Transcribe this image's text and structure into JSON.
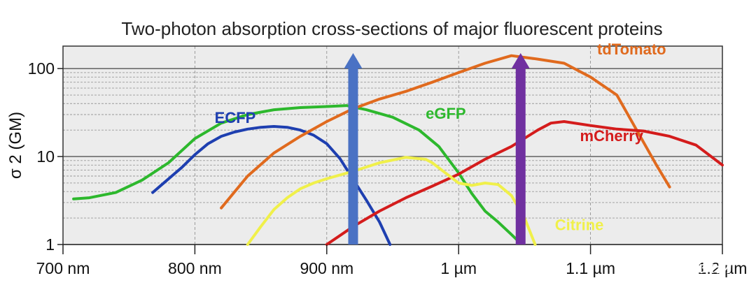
{
  "chart_data": {
    "type": "line",
    "title": "Two-photon absorption cross-sections of major fluorescent proteins",
    "xlabel": "",
    "ylabel": "σ 2 (GM)",
    "xlim": [
      700,
      1200
    ],
    "ylim": [
      1,
      180
    ],
    "yscale": "log",
    "grid": true,
    "x_ticks": [
      {
        "value": 700,
        "label": "700 nm"
      },
      {
        "value": 800,
        "label": "800 nm"
      },
      {
        "value": 900,
        "label": "900 nm"
      },
      {
        "value": 1000,
        "label": "1 µm"
      },
      {
        "value": 1100,
        "label": "1.1 µm"
      },
      {
        "value": 1200,
        "label": "1.2 µm"
      }
    ],
    "y_ticks": [
      {
        "value": 1,
        "label": "1"
      },
      {
        "value": 10,
        "label": "10"
      },
      {
        "value": 100,
        "label": "100"
      }
    ],
    "series": [
      {
        "name": "ECFP",
        "color": "#1e3fb0",
        "x": [
          768,
          775,
          790,
          800,
          810,
          820,
          830,
          840,
          850,
          860,
          870,
          880,
          890,
          900,
          910,
          920,
          930,
          940,
          948
        ],
        "y": [
          3.9,
          4.8,
          7.5,
          10.5,
          14,
          17,
          19,
          20.5,
          21.5,
          22,
          21.5,
          20,
          17.5,
          14,
          9.5,
          5.5,
          3.2,
          1.8,
          1.0
        ]
      },
      {
        "name": "eGFP",
        "color": "#2db82d",
        "x": [
          708,
          720,
          740,
          760,
          780,
          800,
          820,
          840,
          860,
          880,
          900,
          915,
          930,
          950,
          970,
          985,
          1000,
          1010,
          1020,
          1030,
          1040,
          1045
        ],
        "y": [
          3.3,
          3.4,
          3.9,
          5.4,
          8.5,
          16,
          24,
          30,
          34,
          36,
          37,
          38,
          34,
          28,
          20,
          13,
          6.5,
          3.8,
          2.4,
          1.8,
          1.3,
          1.1
        ]
      },
      {
        "name": "tdTomato",
        "color": "#e06a1e",
        "x": [
          820,
          840,
          860,
          880,
          900,
          920,
          940,
          960,
          980,
          1000,
          1020,
          1040,
          1060,
          1080,
          1100,
          1120,
          1135,
          1150,
          1160
        ],
        "y": [
          2.6,
          6,
          11,
          17,
          25,
          35,
          45,
          55,
          70,
          90,
          115,
          140,
          128,
          115,
          80,
          50,
          20,
          8,
          4.5
        ]
      },
      {
        "name": "mCherry",
        "color": "#d41c1c",
        "x": [
          900,
          920,
          940,
          960,
          980,
          1000,
          1020,
          1040,
          1060,
          1070,
          1080,
          1100,
          1120,
          1140,
          1160,
          1180,
          1200
        ],
        "y": [
          1.0,
          1.6,
          2.4,
          3.4,
          4.6,
          6.3,
          9.3,
          13,
          20,
          24,
          25,
          22.5,
          20.5,
          19.5,
          17,
          13.5,
          8
        ]
      },
      {
        "name": "Citrine",
        "color": "#f0f04a",
        "x": [
          840,
          850,
          860,
          870,
          880,
          890,
          900,
          920,
          940,
          960,
          975,
          980,
          990,
          1000,
          1010,
          1020,
          1030,
          1040,
          1050,
          1058
        ],
        "y": [
          1.0,
          1.6,
          2.5,
          3.4,
          4.3,
          5,
          5.6,
          6.8,
          8.5,
          9.8,
          9.3,
          8.5,
          6.5,
          5.0,
          4.7,
          5.0,
          4.8,
          3.6,
          2.0,
          1.0
        ]
      }
    ],
    "annotations": [
      {
        "type": "arrow",
        "color": "#4a72c4",
        "x": 920,
        "y_from": 1.0,
        "y_to": 150
      },
      {
        "type": "arrow",
        "color": "#7030a0",
        "x": 1047,
        "y_from": 1.0,
        "y_to": 150
      }
    ],
    "watermark": "超快安扬"
  }
}
